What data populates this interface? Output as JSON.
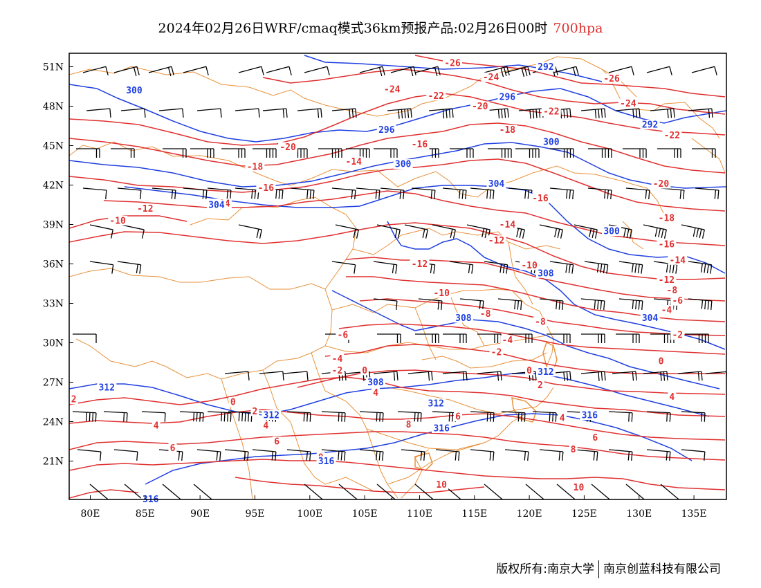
{
  "title": {
    "main": "2024年02月26日WRF/cmaq模式36km预报产品:02月26日00时",
    "level": "700hpa"
  },
  "map": {
    "lon_labels": [
      "80E",
      "85E",
      "90E",
      "95E",
      "100E",
      "105E",
      "110E",
      "115E",
      "120E",
      "125E",
      "130E",
      "135E"
    ],
    "lat_labels": [
      "51N",
      "48N",
      "45N",
      "42N",
      "39N",
      "36N",
      "33N",
      "30N",
      "27N",
      "24N",
      "21N"
    ],
    "colors": {
      "temperature": "#e03030",
      "geopotential": "#1f3fe0",
      "boundary": "#e8913a",
      "wind": "#000000"
    },
    "temperature_labels": [
      {
        "text": "-26",
        "lon": 113.0,
        "lat": 51.3
      },
      {
        "text": "-24",
        "lon": 107.5,
        "lat": 49.3
      },
      {
        "text": "-24",
        "lon": 116.5,
        "lat": 50.2
      },
      {
        "text": "-22",
        "lon": 111.5,
        "lat": 48.8
      },
      {
        "text": "-20",
        "lon": 115.5,
        "lat": 48.0
      },
      {
        "text": "-22",
        "lon": 122.0,
        "lat": 47.6
      },
      {
        "text": "-26",
        "lon": 127.5,
        "lat": 50.1
      },
      {
        "text": "-24",
        "lon": 129.0,
        "lat": 48.2
      },
      {
        "text": "-18",
        "lon": 118.0,
        "lat": 46.2
      },
      {
        "text": "-22",
        "lon": 133.0,
        "lat": 45.8
      },
      {
        "text": "-20",
        "lon": 98.0,
        "lat": 44.9
      },
      {
        "text": "-16",
        "lon": 110.0,
        "lat": 45.1
      },
      {
        "text": "-18",
        "lon": 95.0,
        "lat": 43.4
      },
      {
        "text": "-14",
        "lon": 104.0,
        "lat": 43.8
      },
      {
        "text": "-20",
        "lon": 132.0,
        "lat": 42.1
      },
      {
        "text": "-16",
        "lon": 96.0,
        "lat": 41.8
      },
      {
        "text": "-14",
        "lon": 92.0,
        "lat": 40.6
      },
      {
        "text": "-12",
        "lon": 85.0,
        "lat": 40.2
      },
      {
        "text": "-10",
        "lon": 82.5,
        "lat": 39.3
      },
      {
        "text": "-16",
        "lon": 121.0,
        "lat": 41.0
      },
      {
        "text": "-18",
        "lon": 132.5,
        "lat": 39.5
      },
      {
        "text": "-14",
        "lon": 118.0,
        "lat": 39.0
      },
      {
        "text": "-12",
        "lon": 117.0,
        "lat": 37.8
      },
      {
        "text": "-16",
        "lon": 132.5,
        "lat": 37.5
      },
      {
        "text": "-14",
        "lon": 133.5,
        "lat": 36.3
      },
      {
        "text": "-12",
        "lon": 110.0,
        "lat": 36.0
      },
      {
        "text": "-10",
        "lon": 120.0,
        "lat": 35.9
      },
      {
        "text": "-12",
        "lon": 132.5,
        "lat": 34.8
      },
      {
        "text": "-10",
        "lon": 112.0,
        "lat": 33.8
      },
      {
        "text": "-8",
        "lon": 133.0,
        "lat": 34.0
      },
      {
        "text": "-6",
        "lon": 133.5,
        "lat": 33.2
      },
      {
        "text": "-8",
        "lon": 116.0,
        "lat": 32.2
      },
      {
        "text": "-4",
        "lon": 132.5,
        "lat": 32.5
      },
      {
        "text": "-8",
        "lon": 121.0,
        "lat": 31.6
      },
      {
        "text": "-6",
        "lon": 103.0,
        "lat": 30.6
      },
      {
        "text": "-4",
        "lon": 118.0,
        "lat": 30.2
      },
      {
        "text": "-2",
        "lon": 133.5,
        "lat": 30.6
      },
      {
        "text": "-2",
        "lon": 117.0,
        "lat": 29.3
      },
      {
        "text": "-4",
        "lon": 102.5,
        "lat": 28.8
      },
      {
        "text": "-2",
        "lon": 102.5,
        "lat": 27.9
      },
      {
        "text": "0",
        "lon": 105.0,
        "lat": 27.9
      },
      {
        "text": "0",
        "lon": 120.0,
        "lat": 27.9
      },
      {
        "text": "0",
        "lon": 132.0,
        "lat": 28.6
      },
      {
        "text": "2",
        "lon": 106.0,
        "lat": 26.9
      },
      {
        "text": "4",
        "lon": 106.0,
        "lat": 26.2
      },
      {
        "text": "2",
        "lon": 121.0,
        "lat": 26.8
      },
      {
        "text": "0",
        "lon": 93.0,
        "lat": 25.5
      },
      {
        "text": "2",
        "lon": 95.0,
        "lat": 24.8
      },
      {
        "text": "4",
        "lon": 133.0,
        "lat": 25.9
      },
      {
        "text": "2",
        "lon": 78.5,
        "lat": 25.7
      },
      {
        "text": "4",
        "lon": 86.0,
        "lat": 23.7
      },
      {
        "text": "4",
        "lon": 96.0,
        "lat": 23.7
      },
      {
        "text": "6",
        "lon": 113.5,
        "lat": 24.4
      },
      {
        "text": "4",
        "lon": 123.0,
        "lat": 24.3
      },
      {
        "text": "8",
        "lon": 109.0,
        "lat": 23.8
      },
      {
        "text": "6",
        "lon": 97.0,
        "lat": 22.5
      },
      {
        "text": "6",
        "lon": 87.5,
        "lat": 22.0
      },
      {
        "text": "6",
        "lon": 126.0,
        "lat": 22.8
      },
      {
        "text": "8",
        "lon": 101.0,
        "lat": 21.3
      },
      {
        "text": "8",
        "lon": 124.0,
        "lat": 21.9
      },
      {
        "text": "10",
        "lon": 112.0,
        "lat": 19.2
      },
      {
        "text": "10",
        "lon": 124.5,
        "lat": 19.0
      }
    ],
    "height_labels": [
      {
        "text": "292",
        "lon": 121.5,
        "lat": 51.0
      },
      {
        "text": "296",
        "lon": 118.0,
        "lat": 48.7
      },
      {
        "text": "300",
        "lon": 84.0,
        "lat": 49.2
      },
      {
        "text": "296",
        "lon": 107.0,
        "lat": 46.2
      },
      {
        "text": "292",
        "lon": 131.0,
        "lat": 46.6
      },
      {
        "text": "300",
        "lon": 122.0,
        "lat": 45.3
      },
      {
        "text": "300",
        "lon": 108.5,
        "lat": 43.6
      },
      {
        "text": "304",
        "lon": 117.0,
        "lat": 42.1
      },
      {
        "text": "304",
        "lon": 91.5,
        "lat": 40.5
      },
      {
        "text": "300",
        "lon": 127.5,
        "lat": 38.5
      },
      {
        "text": "308",
        "lon": 121.5,
        "lat": 35.3
      },
      {
        "text": "308",
        "lon": 114.0,
        "lat": 31.9
      },
      {
        "text": "304",
        "lon": 131.0,
        "lat": 31.9
      },
      {
        "text": "312",
        "lon": 121.5,
        "lat": 27.8
      },
      {
        "text": "308",
        "lon": 106.0,
        "lat": 27.0
      },
      {
        "text": "312",
        "lon": 81.5,
        "lat": 26.6
      },
      {
        "text": "312",
        "lon": 96.5,
        "lat": 24.5
      },
      {
        "text": "312",
        "lon": 111.5,
        "lat": 25.4
      },
      {
        "text": "316",
        "lon": 112.0,
        "lat": 23.5
      },
      {
        "text": "316",
        "lon": 125.5,
        "lat": 24.5
      },
      {
        "text": "316",
        "lon": 101.5,
        "lat": 21.0
      },
      {
        "text": "316",
        "lon": 85.5,
        "lat": 18.1
      }
    ]
  },
  "footer": {
    "left": "版权所有:南京大学",
    "right": "南京创蓝科技有限公司"
  }
}
